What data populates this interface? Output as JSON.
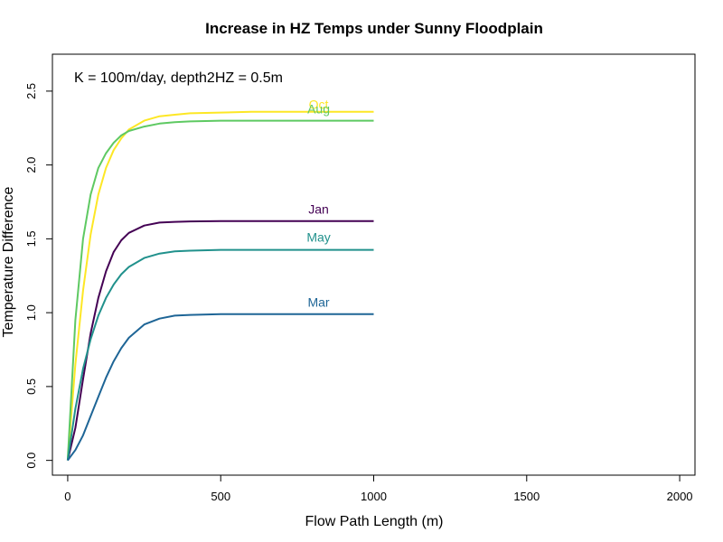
{
  "chart_data": {
    "type": "line",
    "title": "Increase in HZ Temps under Sunny Floodplain",
    "xlabel": "Flow Path Length (m)",
    "ylabel": "Temperature Difference",
    "annotation": "K = 100m/day, depth2HZ = 0.5m",
    "xlim": [
      -50,
      2050
    ],
    "ylim": [
      -0.1,
      2.75
    ],
    "xticks": [
      0,
      500,
      1000,
      1500,
      2000
    ],
    "xtick_labels": [
      "0",
      "500",
      "1000",
      "1500",
      "2000"
    ],
    "yticks": [
      0.0,
      0.5,
      1.0,
      1.5,
      2.0,
      2.5
    ],
    "ytick_labels": [
      "0.0",
      "0.5",
      "1.0",
      "1.5",
      "2.0",
      "2.5"
    ],
    "grid": false,
    "legend": "none",
    "x": [
      0,
      25,
      50,
      75,
      100,
      125,
      150,
      175,
      200,
      250,
      300,
      350,
      400,
      500,
      600,
      700,
      800,
      900,
      1000
    ],
    "series": [
      {
        "name": "Oct",
        "color": "#FDE725",
        "label_at": [
          820,
          2.38
        ],
        "values": [
          0.0,
          0.65,
          1.15,
          1.53,
          1.8,
          1.98,
          2.1,
          2.18,
          2.24,
          2.3,
          2.33,
          2.34,
          2.35,
          2.355,
          2.36,
          2.36,
          2.36,
          2.36,
          2.36
        ]
      },
      {
        "name": "Aug",
        "color": "#5EC962",
        "label_at": [
          820,
          2.35
        ],
        "values": [
          0.0,
          0.95,
          1.5,
          1.8,
          1.98,
          2.08,
          2.15,
          2.2,
          2.23,
          2.26,
          2.28,
          2.29,
          2.295,
          2.3,
          2.3,
          2.3,
          2.3,
          2.3,
          2.3
        ]
      },
      {
        "name": "Jan",
        "color": "#440154",
        "label_at": [
          820,
          1.67
        ],
        "values": [
          0.0,
          0.22,
          0.55,
          0.86,
          1.1,
          1.28,
          1.41,
          1.49,
          1.54,
          1.59,
          1.61,
          1.615,
          1.618,
          1.62,
          1.62,
          1.62,
          1.62,
          1.62,
          1.62
        ]
      },
      {
        "name": "May",
        "color": "#21918C",
        "label_at": [
          820,
          1.48
        ],
        "values": [
          0.0,
          0.35,
          0.62,
          0.82,
          0.98,
          1.1,
          1.19,
          1.26,
          1.31,
          1.37,
          1.4,
          1.415,
          1.42,
          1.425,
          1.425,
          1.425,
          1.425,
          1.425,
          1.425
        ]
      },
      {
        "name": "Mar",
        "color": "#1E6596",
        "label_at": [
          820,
          1.04
        ],
        "values": [
          0.0,
          0.07,
          0.17,
          0.3,
          0.43,
          0.56,
          0.67,
          0.76,
          0.83,
          0.92,
          0.96,
          0.98,
          0.985,
          0.99,
          0.99,
          0.99,
          0.99,
          0.99,
          0.99
        ]
      }
    ]
  }
}
